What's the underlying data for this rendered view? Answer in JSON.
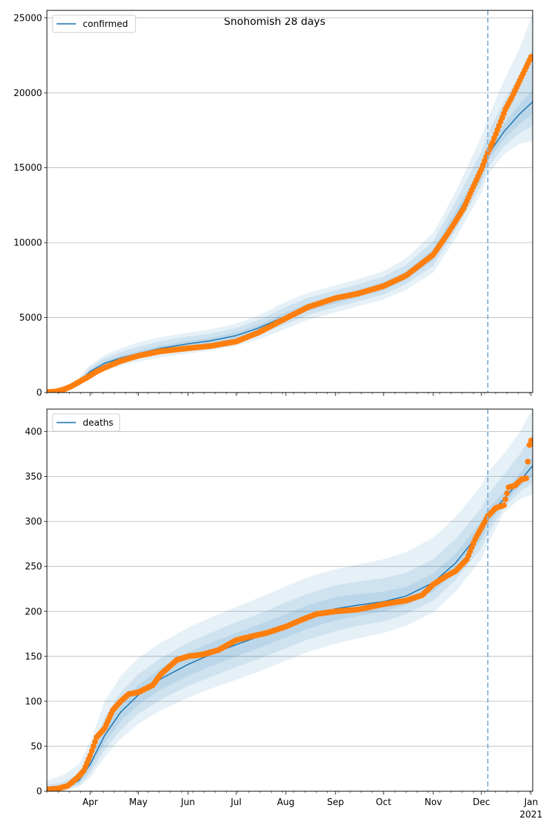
{
  "title": "Snohomish 28 days",
  "colors": {
    "model_line": "#1f77b4",
    "observed": "#ff7f0e",
    "band": "#1f77b4",
    "grid": "#b0b0b0",
    "split_line": "#7fb0d8"
  },
  "x_axis": {
    "start": "2020-03-05",
    "end": "2021-01-02",
    "month_ticks": [
      {
        "date": "2020-04-01",
        "label": "Apr"
      },
      {
        "date": "2020-05-01",
        "label": "May"
      },
      {
        "date": "2020-06-01",
        "label": "Jun"
      },
      {
        "date": "2020-07-01",
        "label": "Jul"
      },
      {
        "date": "2020-08-01",
        "label": "Aug"
      },
      {
        "date": "2020-09-01",
        "label": "Sep"
      },
      {
        "date": "2020-10-01",
        "label": "Oct"
      },
      {
        "date": "2020-11-01",
        "label": "Nov"
      },
      {
        "date": "2020-12-01",
        "label": "Dec"
      },
      {
        "date": "2021-01-01",
        "label": "Jan"
      }
    ],
    "year_label": "2021"
  },
  "split_date": "2020-12-05",
  "chart_data": [
    {
      "type": "line",
      "legend": "confirmed",
      "legend_position": "top-left",
      "grid": "horizontal",
      "ylim": [
        0,
        25500
      ],
      "yticks": [
        0,
        5000,
        10000,
        15000,
        20000,
        25000
      ],
      "model": {
        "x": [
          "2020-03-05",
          "2020-03-15",
          "2020-03-25",
          "2020-04-01",
          "2020-04-10",
          "2020-04-20",
          "2020-05-01",
          "2020-05-15",
          "2020-06-01",
          "2020-06-15",
          "2020-07-01",
          "2020-07-15",
          "2020-08-01",
          "2020-08-15",
          "2020-09-01",
          "2020-09-15",
          "2020-10-01",
          "2020-10-15",
          "2020-11-01",
          "2020-11-15",
          "2020-12-01",
          "2020-12-05",
          "2020-12-15",
          "2020-12-25",
          "2021-01-02"
        ],
        "y": [
          0,
          150,
          700,
          1400,
          1950,
          2300,
          2600,
          2950,
          3250,
          3450,
          3800,
          4300,
          5100,
          5700,
          6200,
          6600,
          7100,
          7800,
          9200,
          11700,
          14700,
          15850,
          17400,
          18600,
          19400
        ]
      },
      "bands": [
        {
          "x": [
            "2020-03-05",
            "2020-03-15",
            "2020-03-25",
            "2020-04-01",
            "2020-04-10",
            "2020-04-20",
            "2020-05-01",
            "2020-05-15",
            "2020-06-01",
            "2020-06-15",
            "2020-07-01",
            "2020-07-15",
            "2020-08-01",
            "2020-08-15",
            "2020-09-01",
            "2020-09-15",
            "2020-10-01",
            "2020-10-15",
            "2020-11-01",
            "2020-11-15",
            "2020-12-01",
            "2020-12-05",
            "2020-12-15",
            "2020-12-25",
            "2021-01-02"
          ],
          "lower": [
            0,
            60,
            450,
            1000,
            1500,
            1800,
            2050,
            2350,
            2600,
            2800,
            3100,
            3550,
            4250,
            4850,
            5350,
            5750,
            6200,
            6850,
            8000,
            10300,
            13300,
            14500,
            15900,
            16600,
            16800
          ],
          "upper": [
            0,
            260,
            1000,
            1850,
            2500,
            2950,
            3350,
            3700,
            4000,
            4200,
            4600,
            5150,
            6050,
            6650,
            7150,
            7550,
            8100,
            8950,
            10650,
            13400,
            17100,
            18300,
            20800,
            23000,
            25300
          ]
        },
        {
          "x": [
            "2020-03-05",
            "2020-03-15",
            "2020-03-25",
            "2020-04-01",
            "2020-04-10",
            "2020-04-20",
            "2020-05-01",
            "2020-05-15",
            "2020-06-01",
            "2020-06-15",
            "2020-07-01",
            "2020-07-15",
            "2020-08-01",
            "2020-08-15",
            "2020-09-01",
            "2020-09-15",
            "2020-10-01",
            "2020-10-15",
            "2020-11-01",
            "2020-11-15",
            "2020-12-01",
            "2020-12-05",
            "2020-12-15",
            "2020-12-25",
            "2021-01-02"
          ],
          "lower": [
            0,
            90,
            550,
            1150,
            1650,
            1990,
            2260,
            2580,
            2850,
            3050,
            3370,
            3840,
            4580,
            5180,
            5680,
            6080,
            6550,
            7230,
            8450,
            10850,
            13850,
            15000,
            16400,
            17300,
            17800
          ],
          "upper": [
            0,
            220,
            880,
            1680,
            2300,
            2700,
            3060,
            3420,
            3720,
            3920,
            4300,
            4840,
            5720,
            6320,
            6820,
            7220,
            7730,
            8520,
            10100,
            12750,
            16100,
            17300,
            19400,
            21300,
            23000
          ]
        },
        {
          "x": [
            "2020-03-05",
            "2020-03-15",
            "2020-03-25",
            "2020-04-01",
            "2020-04-10",
            "2020-04-20",
            "2020-05-01",
            "2020-05-15",
            "2020-06-01",
            "2020-06-15",
            "2020-07-01",
            "2020-07-15",
            "2020-08-01",
            "2020-08-15",
            "2020-09-01",
            "2020-09-15",
            "2020-10-01",
            "2020-10-15",
            "2020-11-01",
            "2020-11-15",
            "2020-12-01",
            "2020-12-05",
            "2020-12-15",
            "2020-12-25",
            "2021-01-02"
          ],
          "lower": [
            0,
            120,
            620,
            1280,
            1800,
            2140,
            2430,
            2770,
            3060,
            3260,
            3590,
            4080,
            4850,
            5450,
            5950,
            6350,
            6830,
            7520,
            8830,
            11280,
            14270,
            15430,
            16900,
            17950,
            18600
          ],
          "upper": [
            0,
            180,
            780,
            1520,
            2100,
            2460,
            2770,
            3130,
            3440,
            3640,
            4010,
            4520,
            5350,
            5950,
            6450,
            6850,
            7370,
            8080,
            9570,
            12120,
            15130,
            16270,
            17900,
            19250,
            20200
          ]
        }
      ],
      "observed": {
        "x": [
          "2020-03-05",
          "2020-03-10",
          "2020-03-15",
          "2020-03-20",
          "2020-03-25",
          "2020-03-30",
          "2020-04-05",
          "2020-04-10",
          "2020-04-20",
          "2020-05-01",
          "2020-05-15",
          "2020-06-01",
          "2020-06-15",
          "2020-07-01",
          "2020-07-15",
          "2020-08-01",
          "2020-08-15",
          "2020-09-01",
          "2020-09-15",
          "2020-10-01",
          "2020-10-15",
          "2020-11-01",
          "2020-11-10",
          "2020-11-20",
          "2020-11-25",
          "2020-12-01",
          "2020-12-05",
          "2020-12-08",
          "2020-12-12",
          "2020-12-16",
          "2020-12-20",
          "2020-12-24",
          "2020-12-28",
          "2021-01-01"
        ],
        "y": [
          30,
          60,
          180,
          400,
          700,
          1000,
          1400,
          1650,
          2100,
          2450,
          2750,
          2950,
          3100,
          3400,
          4000,
          4950,
          5700,
          6300,
          6600,
          7100,
          7800,
          9200,
          10600,
          12300,
          13500,
          14900,
          16000,
          16700,
          17800,
          18900,
          19700,
          20600,
          21500,
          22400
        ]
      }
    },
    {
      "type": "line",
      "legend": "deaths",
      "legend_position": "top-left",
      "grid": "horizontal",
      "ylim": [
        0,
        425
      ],
      "yticks": [
        0,
        50,
        100,
        150,
        200,
        250,
        300,
        350,
        400
      ],
      "model": {
        "x": [
          "2020-03-05",
          "2020-03-15",
          "2020-03-25",
          "2020-04-01",
          "2020-04-10",
          "2020-04-20",
          "2020-05-01",
          "2020-05-15",
          "2020-06-01",
          "2020-06-15",
          "2020-07-01",
          "2020-07-15",
          "2020-08-01",
          "2020-08-15",
          "2020-09-01",
          "2020-09-15",
          "2020-10-01",
          "2020-10-15",
          "2020-11-01",
          "2020-11-15",
          "2020-12-01",
          "2020-12-05",
          "2020-12-15",
          "2020-12-25",
          "2021-01-02"
        ],
        "y": [
          0,
          3,
          12,
          30,
          62,
          88,
          107,
          125,
          141,
          152,
          163,
          172,
          184,
          194,
          203,
          207,
          211,
          217,
          232,
          254,
          290,
          305,
          325,
          345,
          362
        ]
      },
      "bands": [
        {
          "x": [
            "2020-03-05",
            "2020-03-15",
            "2020-03-25",
            "2020-04-01",
            "2020-04-10",
            "2020-04-20",
            "2020-05-01",
            "2020-05-15",
            "2020-06-01",
            "2020-06-15",
            "2020-07-01",
            "2020-07-15",
            "2020-08-01",
            "2020-08-15",
            "2020-09-01",
            "2020-09-15",
            "2020-10-01",
            "2020-10-15",
            "2020-11-01",
            "2020-11-15",
            "2020-12-01",
            "2020-12-05",
            "2020-12-15",
            "2020-12-25",
            "2021-01-02"
          ],
          "lower": [
            0,
            0,
            5,
            15,
            38,
            58,
            75,
            90,
            104,
            114,
            124,
            133,
            145,
            155,
            164,
            170,
            176,
            184,
            199,
            222,
            258,
            275,
            310,
            325,
            330
          ],
          "upper": [
            12,
            18,
            30,
            55,
            100,
            128,
            148,
            165,
            182,
            193,
            205,
            215,
            228,
            238,
            247,
            252,
            258,
            266,
            282,
            305,
            340,
            355,
            375,
            400,
            425
          ]
        },
        {
          "x": [
            "2020-03-05",
            "2020-03-15",
            "2020-03-25",
            "2020-04-01",
            "2020-04-10",
            "2020-04-20",
            "2020-05-01",
            "2020-05-15",
            "2020-06-01",
            "2020-06-15",
            "2020-07-01",
            "2020-07-15",
            "2020-08-01",
            "2020-08-15",
            "2020-09-01",
            "2020-09-15",
            "2020-10-01",
            "2020-10-15",
            "2020-11-01",
            "2020-11-15",
            "2020-12-01",
            "2020-12-05",
            "2020-12-15",
            "2020-12-25",
            "2021-01-02"
          ],
          "lower": [
            0,
            1,
            7,
            20,
            46,
            68,
            86,
            102,
            117,
            127,
            138,
            147,
            159,
            169,
            178,
            184,
            189,
            197,
            212,
            235,
            271,
            287,
            315,
            333,
            343
          ],
          "upper": [
            7,
            10,
            20,
            42,
            82,
            110,
            130,
            148,
            165,
            176,
            188,
            197,
            210,
            220,
            229,
            233,
            237,
            243,
            258,
            281,
            315,
            330,
            352,
            375,
            397
          ]
        },
        {
          "x": [
            "2020-03-05",
            "2020-03-15",
            "2020-03-25",
            "2020-04-01",
            "2020-04-10",
            "2020-04-20",
            "2020-05-01",
            "2020-05-15",
            "2020-06-01",
            "2020-06-15",
            "2020-07-01",
            "2020-07-15",
            "2020-08-01",
            "2020-08-15",
            "2020-09-01",
            "2020-09-15",
            "2020-10-01",
            "2020-10-15",
            "2020-11-01",
            "2020-11-15",
            "2020-12-01",
            "2020-12-05",
            "2020-12-15",
            "2020-12-25",
            "2021-01-02"
          ],
          "lower": [
            0,
            2,
            9,
            25,
            54,
            78,
            96,
            113,
            128,
            139,
            150,
            159,
            171,
            181,
            190,
            195,
            200,
            207,
            222,
            244,
            280,
            296,
            320,
            339,
            352
          ],
          "upper": [
            3,
            5,
            15,
            36,
            71,
            99,
            118,
            137,
            154,
            165,
            176,
            185,
            197,
            207,
            216,
            219,
            222,
            227,
            242,
            264,
            300,
            314,
            333,
            353,
            373
          ]
        }
      ],
      "observed": {
        "x": [
          "2020-03-05",
          "2020-03-12",
          "2020-03-18",
          "2020-03-24",
          "2020-03-28",
          "2020-04-01",
          "2020-04-05",
          "2020-04-10",
          "2020-04-15",
          "2020-04-20",
          "2020-04-25",
          "2020-05-01",
          "2020-05-10",
          "2020-05-15",
          "2020-05-25",
          "2020-06-01",
          "2020-06-10",
          "2020-06-20",
          "2020-07-01",
          "2020-07-10",
          "2020-07-20",
          "2020-08-01",
          "2020-08-10",
          "2020-08-20",
          "2020-09-01",
          "2020-09-15",
          "2020-10-01",
          "2020-10-15",
          "2020-10-25",
          "2020-11-01",
          "2020-11-08",
          "2020-11-15",
          "2020-11-22",
          "2020-11-27",
          "2020-12-01",
          "2020-12-05",
          "2020-12-10",
          "2020-12-15",
          "2020-12-18",
          "2020-12-22",
          "2020-12-26",
          "2020-12-29",
          "2020-12-31",
          "2021-01-01"
        ],
        "y": [
          2,
          3,
          6,
          15,
          23,
          40,
          60,
          70,
          90,
          100,
          108,
          110,
          118,
          130,
          146,
          150,
          152,
          157,
          168,
          172,
          176,
          183,
          190,
          197,
          200,
          202,
          208,
          212,
          218,
          230,
          238,
          245,
          258,
          280,
          293,
          306,
          315,
          318,
          338,
          340,
          347,
          348,
          385,
          390
        ]
      }
    }
  ]
}
